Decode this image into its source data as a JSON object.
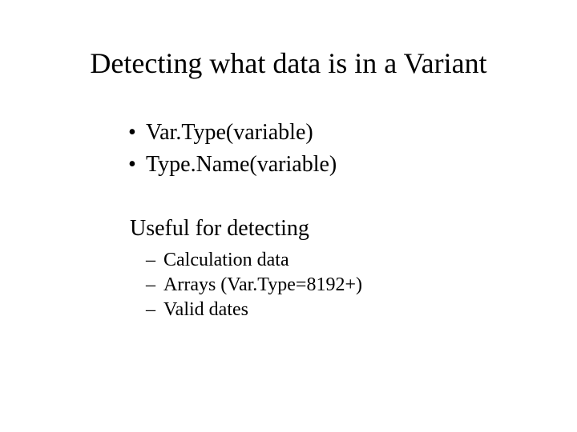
{
  "title": "Detecting what data is in a Variant",
  "bullets_l1": [
    "Var.Type(variable)",
    "Type.Name(variable)"
  ],
  "subhead": "Useful for detecting",
  "bullets_l2": [
    "Calculation data",
    "Arrays (Var.Type=8192+)",
    "Valid dates"
  ],
  "glyphs": {
    "dot": "•",
    "dash": "–"
  }
}
